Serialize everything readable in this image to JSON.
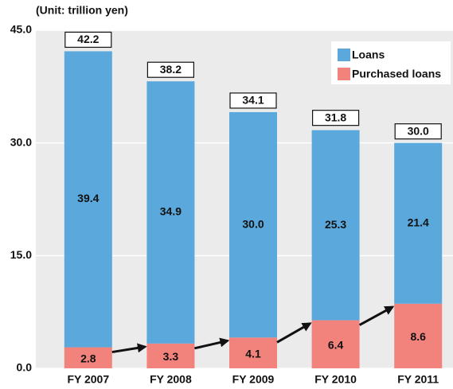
{
  "chart_data": {
    "type": "stacked_bar",
    "subtitle": "(Unit: trillion yen)",
    "categories": [
      "FY 2007",
      "FY 2008",
      "FY 2009",
      "FY 2010",
      "FY 2011"
    ],
    "series": [
      {
        "name": "Purchased loans",
        "color": "#f2837c",
        "values": [
          2.8,
          3.3,
          4.1,
          6.4,
          8.6
        ]
      },
      {
        "name": "Loans",
        "color": "#5aa8dc",
        "values": [
          39.4,
          34.9,
          30,
          25.3,
          21.4
        ],
        "value_labels": [
          "39.4",
          "34.9",
          "30.0",
          "25.3",
          "21.4"
        ]
      }
    ],
    "totals": {
      "values": [
        42.2,
        38.2,
        34.1,
        31.8,
        30
      ],
      "value_labels": [
        "42.2",
        "38.2",
        "34.1",
        "31.8",
        "30.0"
      ]
    },
    "ylim": [
      0,
      45
    ],
    "yticks": [
      {
        "value": 0,
        "label": "0.0"
      },
      {
        "value": 15,
        "label": "15.0"
      },
      {
        "value": 30,
        "label": "30.0"
      },
      {
        "value": 45,
        "label": "45.0"
      }
    ],
    "grid": true,
    "legend": "upper right"
  }
}
